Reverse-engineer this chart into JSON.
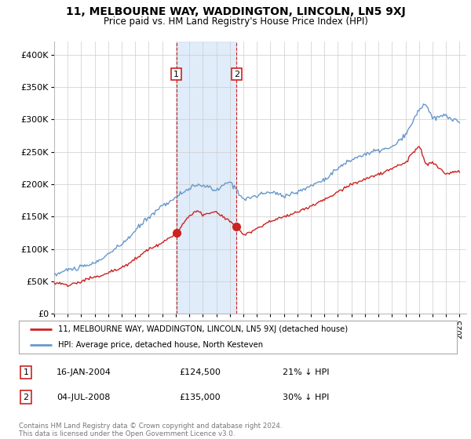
{
  "title": "11, MELBOURNE WAY, WADDINGTON, LINCOLN, LN5 9XJ",
  "subtitle": "Price paid vs. HM Land Registry's House Price Index (HPI)",
  "legend_line1": "11, MELBOURNE WAY, WADDINGTON, LINCOLN, LN5 9XJ (detached house)",
  "legend_line2": "HPI: Average price, detached house, North Kesteven",
  "table": [
    {
      "num": "1",
      "date": "16-JAN-2004",
      "price": "£124,500",
      "pct": "21% ↓ HPI"
    },
    {
      "num": "2",
      "date": "04-JUL-2008",
      "price": "£135,000",
      "pct": "30% ↓ HPI"
    }
  ],
  "footnote": "Contains HM Land Registry data © Crown copyright and database right 2024.\nThis data is licensed under the Open Government Licence v3.0.",
  "ylim": [
    0,
    420000
  ],
  "yticks": [
    0,
    50000,
    100000,
    150000,
    200000,
    250000,
    300000,
    350000,
    400000
  ],
  "ytick_labels": [
    "£0",
    "£50K",
    "£100K",
    "£150K",
    "£200K",
    "£250K",
    "£300K",
    "£350K",
    "£400K"
  ],
  "hpi_color": "#6699cc",
  "sale_color": "#cc2222",
  "sale1_x": 2004.04,
  "sale1_y": 124500,
  "sale2_x": 2008.5,
  "sale2_y": 135000,
  "vshade_x1": 2004.04,
  "vshade_x2": 2008.5,
  "bg_color": "#ffffff",
  "plot_bg_color": "#ffffff",
  "grid_color": "#cccccc",
  "xlim_left": 1995,
  "xlim_right": 2025.5
}
